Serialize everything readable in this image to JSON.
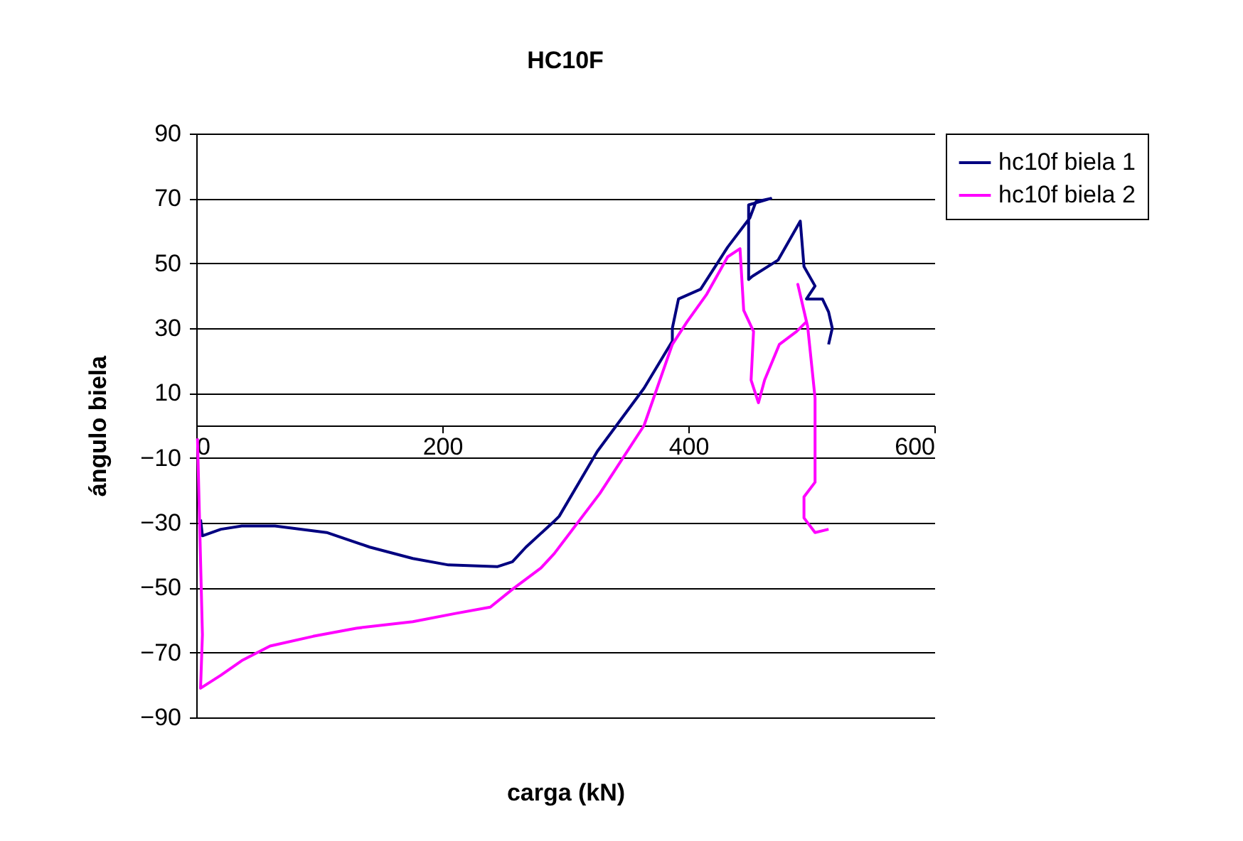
{
  "chart_data": {
    "type": "line",
    "title": "HC10F",
    "xlabel": "carga (kN)",
    "ylabel": "ángulo biela",
    "xlim": [
      0,
      600
    ],
    "xticks": [
      0,
      200,
      400,
      600
    ],
    "ylim": [
      -90,
      90
    ],
    "yticks": [
      -90,
      -70,
      -50,
      -30,
      -10,
      10,
      30,
      50,
      70,
      90
    ],
    "grid": "y",
    "legend": "right",
    "marker": "none",
    "line_style": "solid",
    "series": [
      {
        "name": "hc10f biela 1",
        "color": "#000080",
        "x": [
          3.5,
          5,
          20,
          37,
          64,
          106,
          141,
          176,
          205,
          245,
          257,
          268,
          291,
          295,
          326,
          364,
          387,
          387,
          392,
          410,
          432,
          450,
          455,
          467,
          449,
          449,
          452,
          473,
          491,
          494,
          503,
          496,
          509,
          514,
          517,
          514
        ],
        "values": [
          -29,
          -34,
          -32,
          -31,
          -31,
          -33,
          -37.5,
          -41,
          -43,
          -43.5,
          -42,
          -37.5,
          -29.5,
          -28,
          -8,
          11.5,
          26,
          30,
          39,
          42,
          55,
          64,
          69,
          70,
          68,
          45,
          46,
          51,
          63,
          49,
          43,
          39,
          39,
          35,
          30,
          25
        ]
      },
      {
        "name": "hc10f biela 2",
        "color": "#ff00ff",
        "x": [
          1,
          5,
          3.5,
          20,
          37,
          60,
          95,
          130,
          176,
          210,
          239,
          257,
          280,
          291,
          328,
          364,
          387,
          399,
          415,
          432,
          442,
          445,
          453,
          451,
          457,
          462,
          474,
          488,
          496,
          489,
          497,
          503,
          503,
          494,
          494,
          503,
          514
        ],
        "values": [
          -4,
          -64.5,
          -81,
          -77,
          -72.5,
          -68,
          -65,
          -62.5,
          -60.5,
          -58,
          -56,
          -50.5,
          -44,
          -39.5,
          -21,
          0,
          25,
          32,
          40.5,
          52,
          54.5,
          35.5,
          29,
          14,
          7,
          14,
          25,
          29,
          32,
          43.5,
          30.5,
          8.5,
          -17.5,
          -22,
          -28.5,
          -33,
          -32
        ]
      }
    ]
  }
}
